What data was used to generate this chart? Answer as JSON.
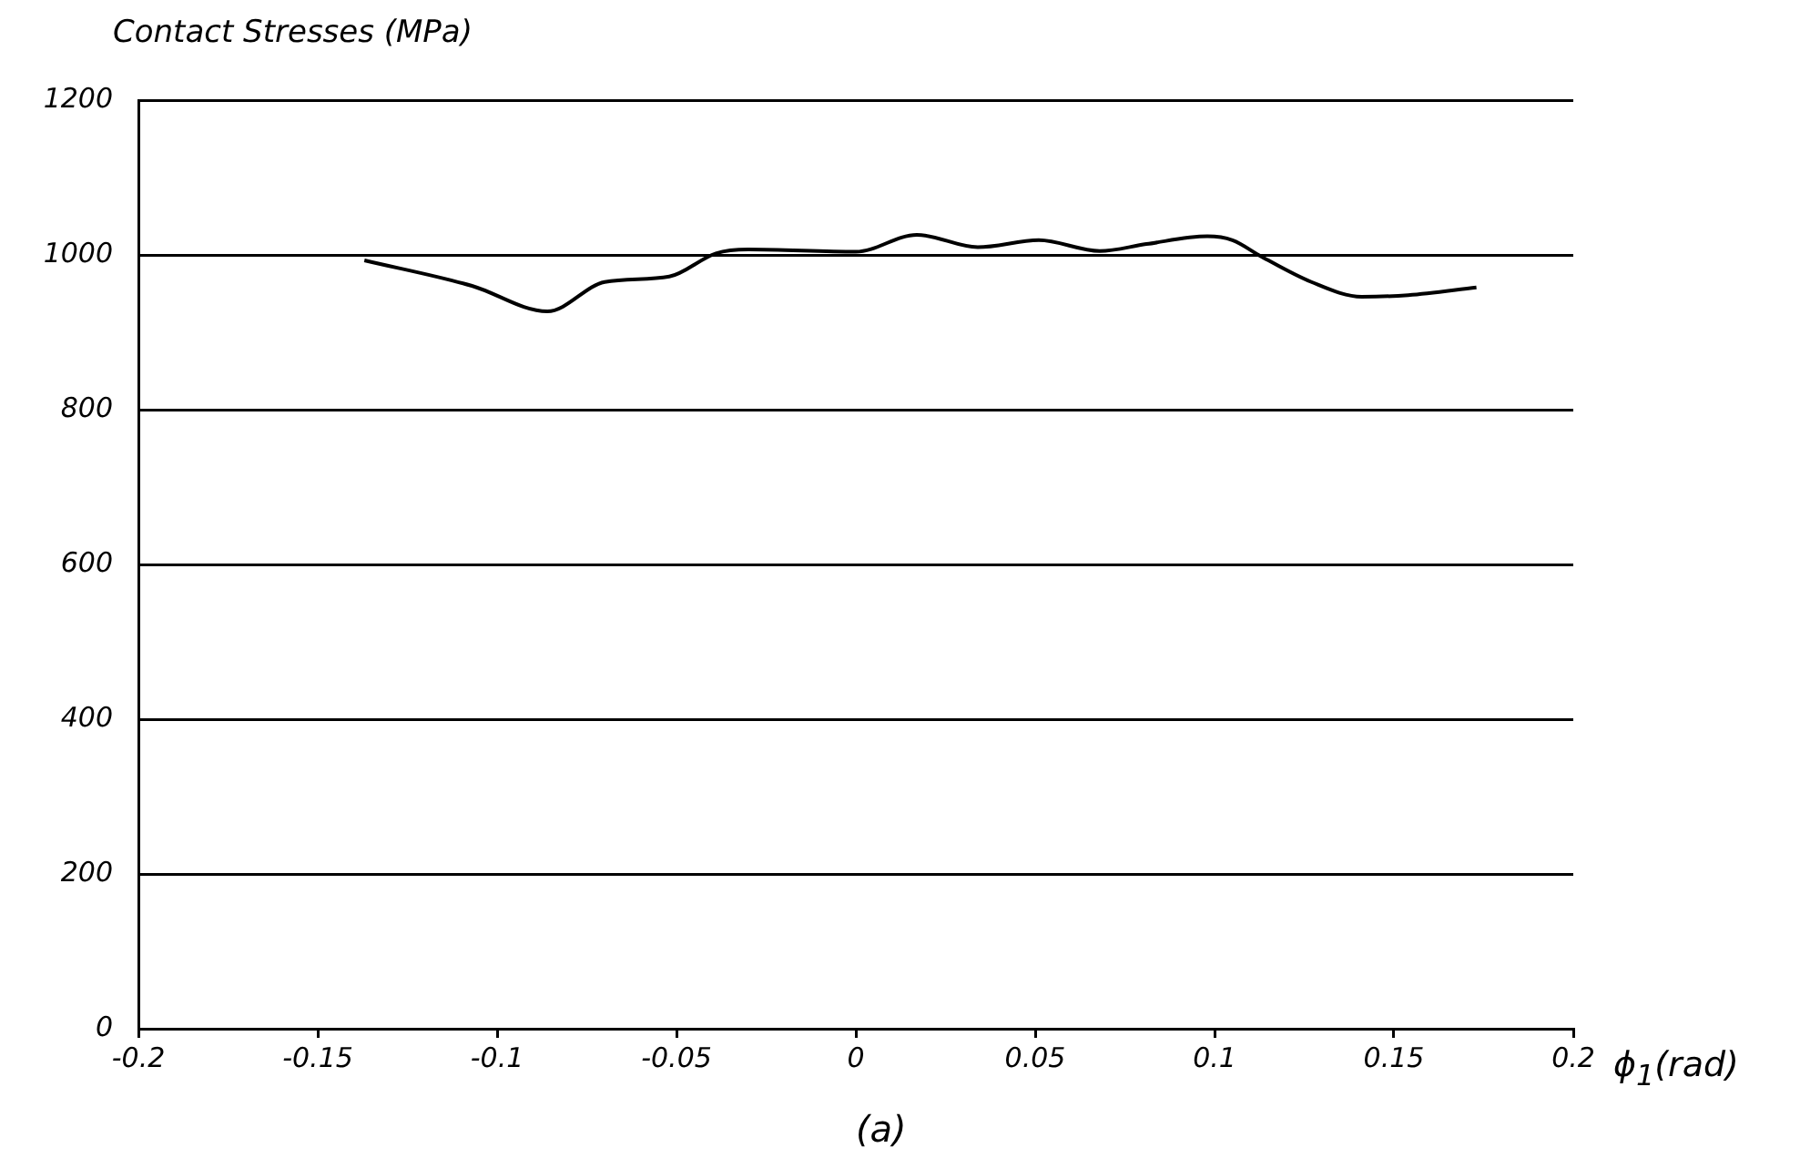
{
  "chart_data": {
    "type": "line",
    "ylabel": "Contact Stresses (MPa)",
    "xlabel": "ϕ$_{1}$(rad)",
    "annotations": [
      "(a)"
    ],
    "x": [
      -0.137,
      -0.107,
      -0.086,
      -0.07,
      -0.052,
      -0.039,
      -0.03,
      0.0,
      0.017,
      0.034,
      0.051,
      0.068,
      0.081,
      0.098,
      0.105,
      0.113,
      0.127,
      0.141,
      0.154,
      0.173
    ],
    "series": [
      {
        "color": "#000000",
        "values": [
          993,
          960,
          927,
          965,
          972,
          1002,
          1007,
          1004,
          1026,
          1010,
          1019,
          1005,
          1014,
          1024,
          1019,
          998,
          965,
          946,
          948,
          958
        ]
      }
    ],
    "xlim": [
      -0.2,
      0.2
    ],
    "xticks": [
      -0.2,
      -0.15,
      -0.1,
      -0.05,
      0,
      0.05,
      0.1,
      0.15,
      0.2
    ],
    "ylim": [
      0,
      1200
    ],
    "yticks": [
      0,
      200,
      400,
      600,
      800,
      1000,
      1200
    ],
    "grid": "y",
    "legend": false,
    "marker": "none",
    "line_style": "solid"
  }
}
